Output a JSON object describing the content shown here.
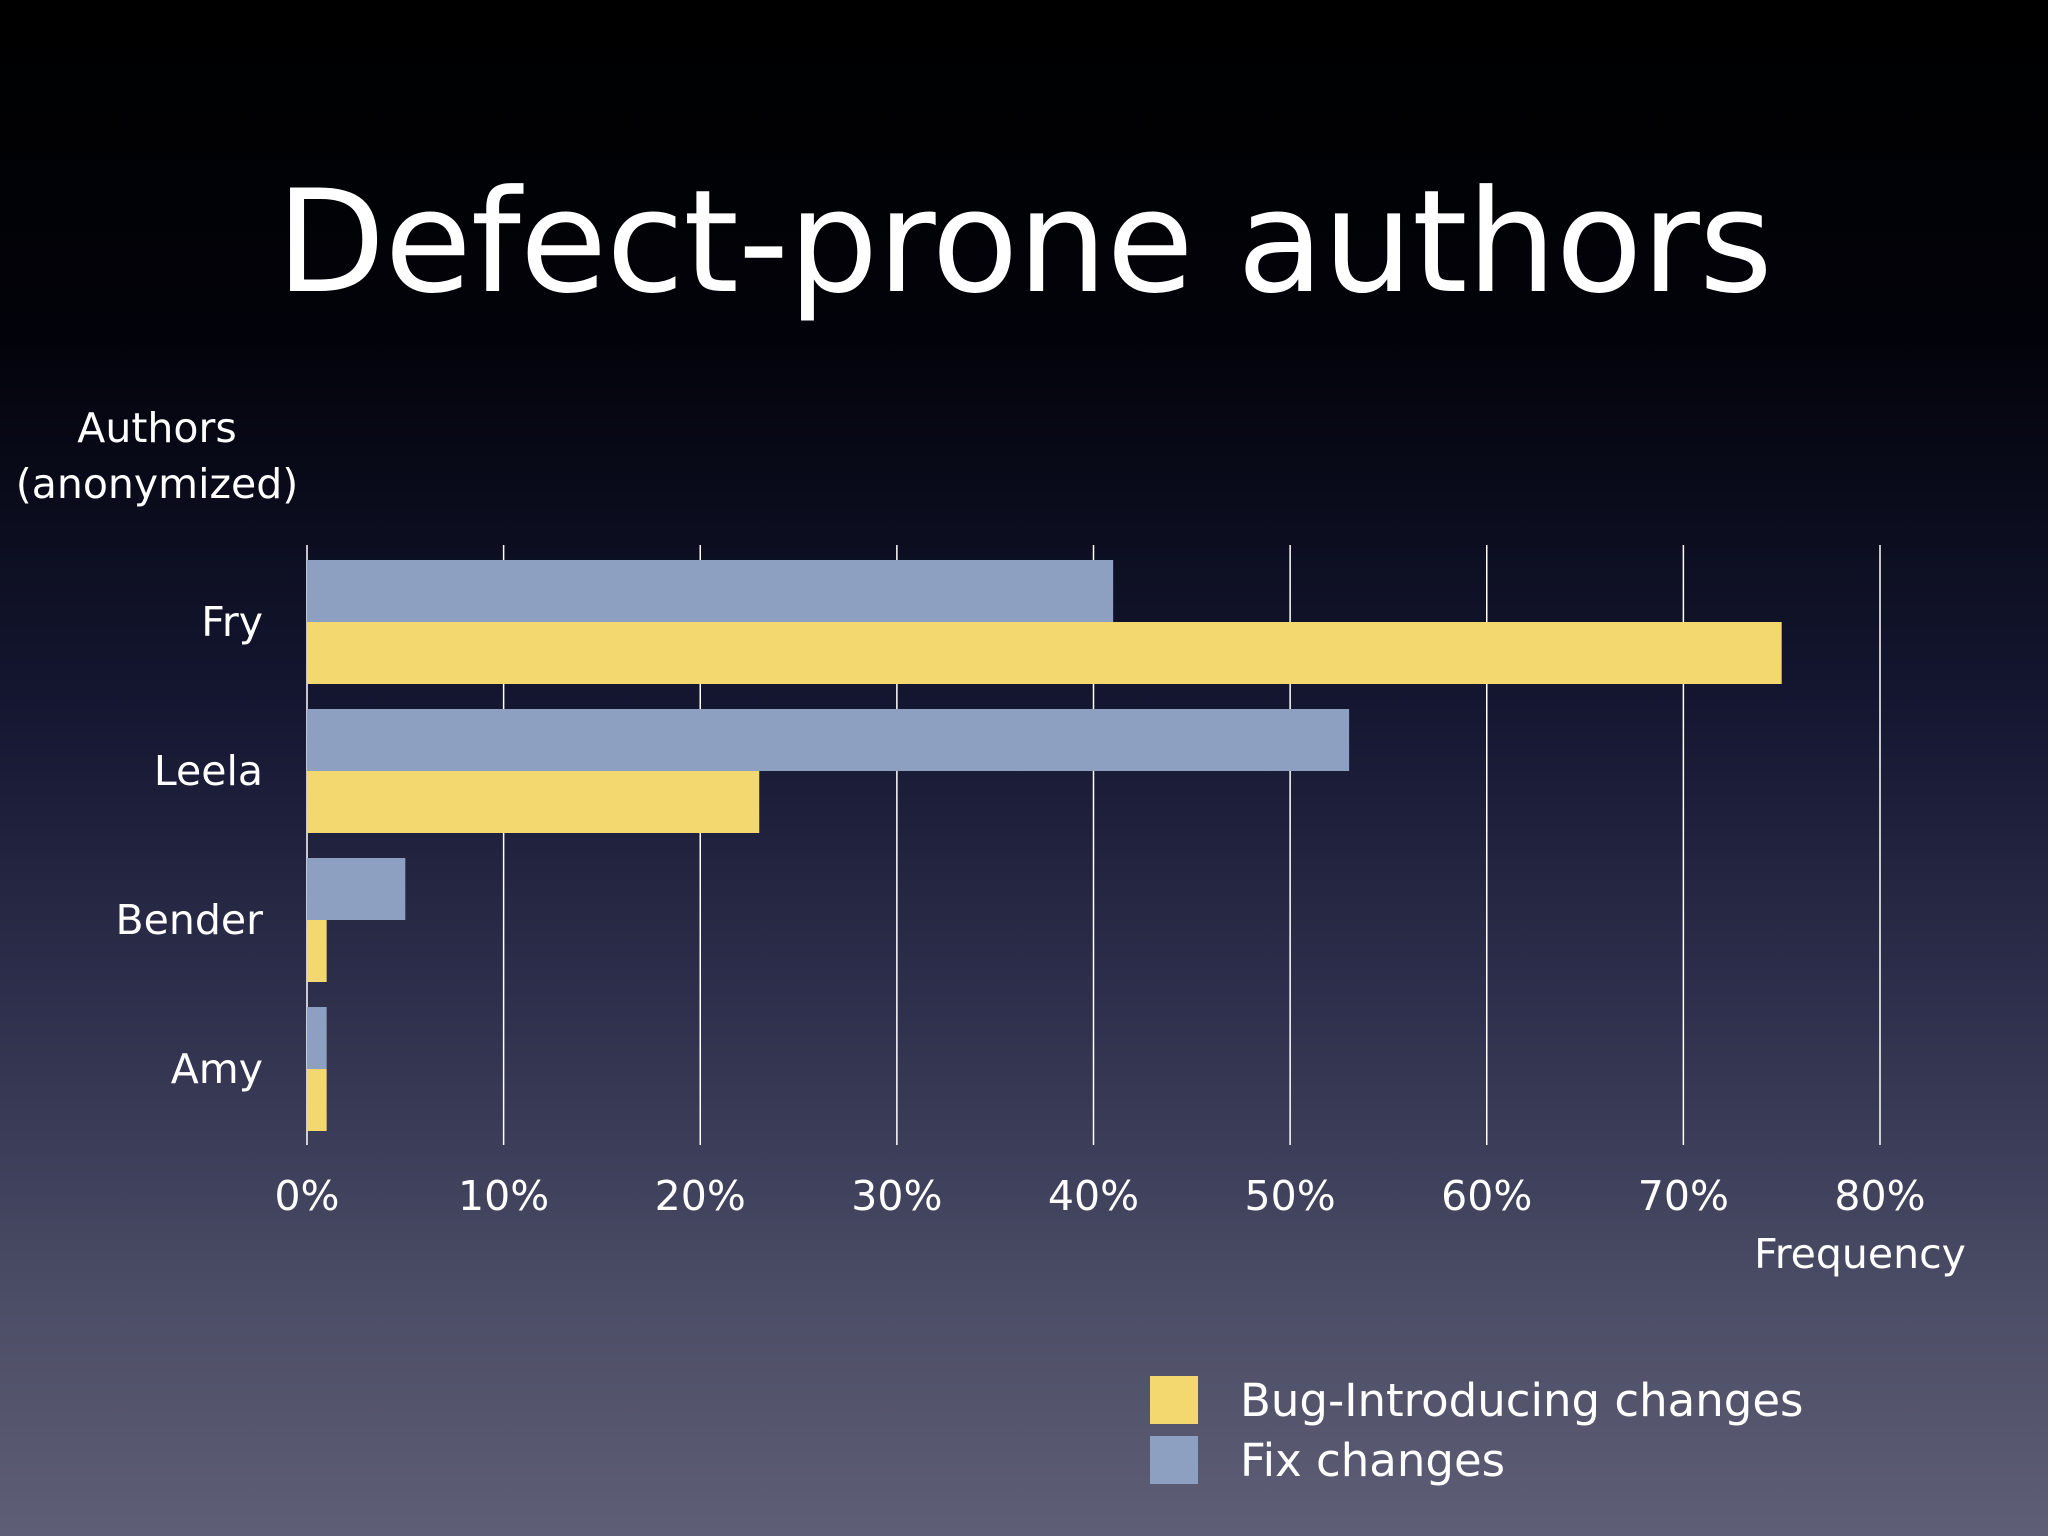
{
  "slide": {
    "title": "Defect-prone authors",
    "ylabel_line1": "Authors",
    "ylabel_line2": "(anonymized)",
    "xlabel": "Frequency"
  },
  "colors": {
    "bug": "#f2d86f",
    "fix": "#8ea0c2",
    "grid": "#ffffff"
  },
  "legend": [
    {
      "label": "Bug-Introducing changes",
      "color": "#f2d86f"
    },
    {
      "label": "Fix changes",
      "color": "#8ea0c2"
    }
  ],
  "chart_data": {
    "type": "bar",
    "orientation": "horizontal",
    "title": "Defect-prone authors",
    "xlabel": "Frequency",
    "ylabel": "Authors (anonymized)",
    "categories": [
      "Fry",
      "Leela",
      "Bender",
      "Amy"
    ],
    "series": [
      {
        "name": "Fix changes",
        "values": [
          41,
          53,
          5,
          1
        ]
      },
      {
        "name": "Bug-Introducing changes",
        "values": [
          75,
          23,
          1,
          1
        ]
      }
    ],
    "xlim": [
      0,
      80
    ],
    "xticks": [
      "0%",
      "10%",
      "20%",
      "30%",
      "40%",
      "50%",
      "60%",
      "70%",
      "80%"
    ],
    "grid": "vertical",
    "legend_position": "bottom-right"
  }
}
